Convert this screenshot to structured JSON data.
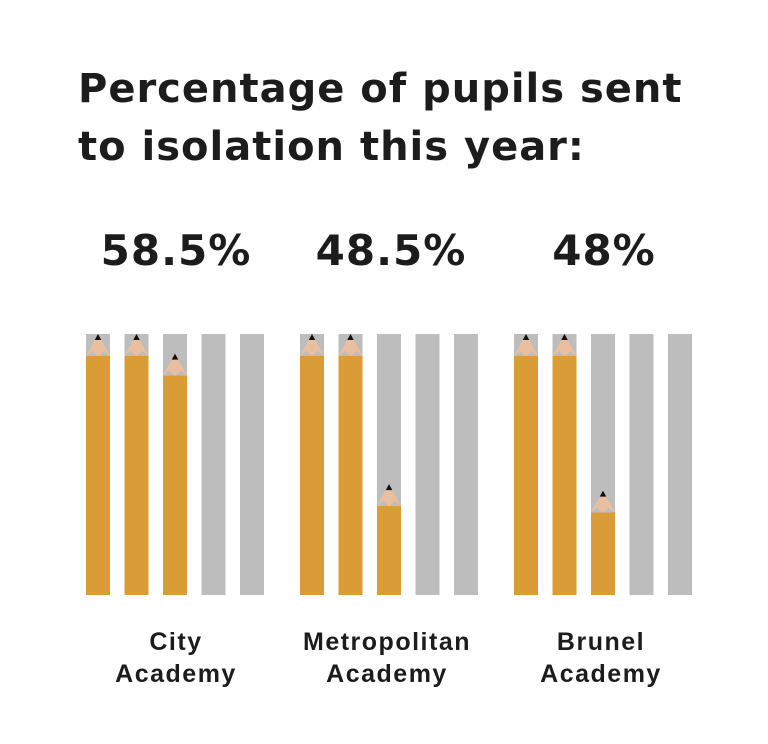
{
  "title_line1": "Percentage of pupils sent",
  "title_line2": "to isolation this year:",
  "colors": {
    "pencil_body": "#D99C36",
    "pencil_wood": "#E9BFA0",
    "pencil_lead": "#111111",
    "background_bar": "#BDBDBD",
    "text": "#1C1C1C"
  },
  "chart_data": {
    "type": "bar",
    "title": "Percentage of pupils sent to isolation this year:",
    "unit": "%",
    "ylim": [
      0,
      100
    ],
    "pencils_per_academy": 5,
    "categories": [
      {
        "line1": "City",
        "line2": "Academy",
        "value": 58.5,
        "value_label": "58.5%"
      },
      {
        "line1": "Metropolitan",
        "line2": "Academy",
        "value": 48.5,
        "value_label": "48.5%"
      },
      {
        "line1": "Brunel",
        "line2": "Academy",
        "value": 48,
        "value_label": "48%"
      }
    ]
  }
}
